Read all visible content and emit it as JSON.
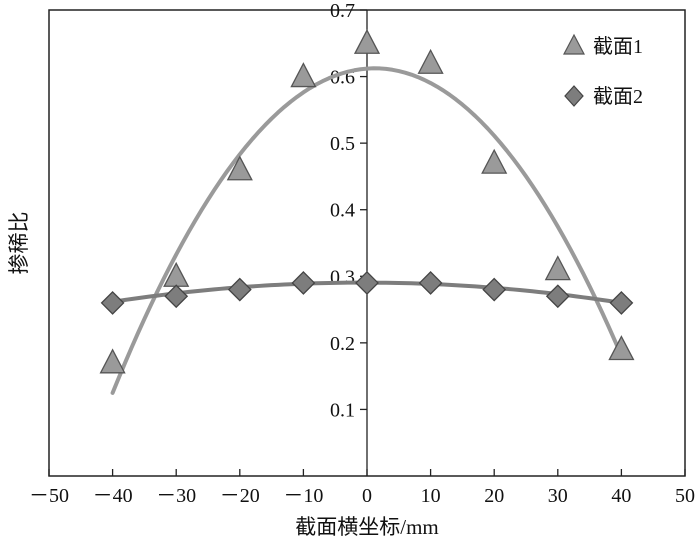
{
  "chart_data": {
    "type": "scatter",
    "title": "",
    "xlabel": "截面横坐标/mm",
    "ylabel": "掺稀比",
    "xlim": [
      -50,
      50
    ],
    "ylim": [
      0,
      0.7
    ],
    "x_ticks": [
      -50,
      -40,
      -30,
      -20,
      -10,
      0,
      10,
      20,
      30,
      40,
      50
    ],
    "x_tick_labels": [
      "－50",
      "－40",
      "－30",
      "－20",
      "－10",
      "0",
      "10",
      "20",
      "30",
      "40",
      "50"
    ],
    "y_ticks": [
      0.1,
      0.2,
      0.3,
      0.4,
      0.5,
      0.6,
      0.7
    ],
    "y_tick_labels": [
      "0.1",
      "0.2",
      "0.3",
      "0.4",
      "0.5",
      "0.6",
      "0.7"
    ],
    "grid": false,
    "legend_position": "top-right",
    "center_line_x": 0,
    "series": [
      {
        "name": "截面1",
        "marker": "triangle",
        "color": "#9a9a9a",
        "x": [
          -40,
          -30,
          -20,
          -10,
          0,
          10,
          20,
          30,
          40
        ],
        "y": [
          0.17,
          0.3,
          0.46,
          0.6,
          0.65,
          0.62,
          0.47,
          0.31,
          0.19
        ],
        "fit": {
          "type": "quadratic",
          "coefficients": [
            0.612,
            0.0007,
            -0.000287
          ],
          "x_range": [
            -40,
            40
          ]
        }
      },
      {
        "name": "截面2",
        "marker": "diamond",
        "color": "#7d7d7d",
        "x": [
          -40,
          -30,
          -20,
          -10,
          0,
          10,
          20,
          30,
          40
        ],
        "y": [
          0.26,
          0.27,
          0.28,
          0.29,
          0.29,
          0.29,
          0.28,
          0.27,
          0.26
        ],
        "fit": {
          "type": "quadratic",
          "coefficients": [
            0.2905,
            -2e-05,
            -1.85e-05
          ],
          "x_range": [
            -40,
            40
          ]
        }
      }
    ]
  }
}
